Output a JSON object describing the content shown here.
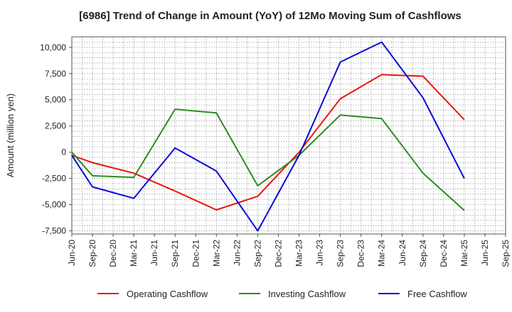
{
  "chart_data": {
    "type": "line",
    "title": "[6986]  Trend of Change in Amount (YoY) of 12Mo Moving Sum of Cashflows",
    "xlabel": "",
    "ylabel": "Amount (million yen)",
    "categories": [
      "Jun-20",
      "Sep-20",
      "Dec-20",
      "Mar-21",
      "Jun-21",
      "Sep-21",
      "Dec-21",
      "Mar-22",
      "Jun-22",
      "Sep-22",
      "Dec-22",
      "Mar-23",
      "Jun-23",
      "Sep-23",
      "Dec-23",
      "Mar-24",
      "Jun-24",
      "Sep-24",
      "Dec-24",
      "Mar-25",
      "Jun-25",
      "Sep-25"
    ],
    "ylim": [
      -7800,
      11000
    ],
    "yticks": [
      -7500,
      -5000,
      -2500,
      0,
      2500,
      5000,
      7500,
      10000
    ],
    "ytick_labels": [
      "-7,500",
      "-5,000",
      "-2,500",
      "0",
      "2,500",
      "5,000",
      "7,500",
      "10,000"
    ],
    "grid": true,
    "legend_position": "bottom",
    "series": [
      {
        "name": "Operating Cashflow",
        "color": "#e8150f",
        "values": [
          -300,
          -1000,
          null,
          -2000,
          null,
          -3700,
          null,
          -5500,
          null,
          -4200,
          null,
          0,
          null,
          5100,
          null,
          7400,
          null,
          7250,
          null,
          3100,
          null,
          null
        ]
      },
      {
        "name": "Investing Cashflow",
        "color": "#2e8b22",
        "values": [
          0,
          -2250,
          null,
          -2400,
          null,
          4100,
          null,
          3750,
          null,
          -3200,
          null,
          -300,
          null,
          3550,
          null,
          3200,
          null,
          -2000,
          null,
          -5550,
          null,
          null
        ]
      },
      {
        "name": "Free Cashflow",
        "color": "#0b0bd6",
        "values": [
          -300,
          -3300,
          null,
          -4400,
          null,
          400,
          null,
          -1800,
          null,
          -7500,
          null,
          -300,
          null,
          8600,
          null,
          10500,
          null,
          5200,
          null,
          -2500,
          null,
          null
        ]
      }
    ]
  }
}
